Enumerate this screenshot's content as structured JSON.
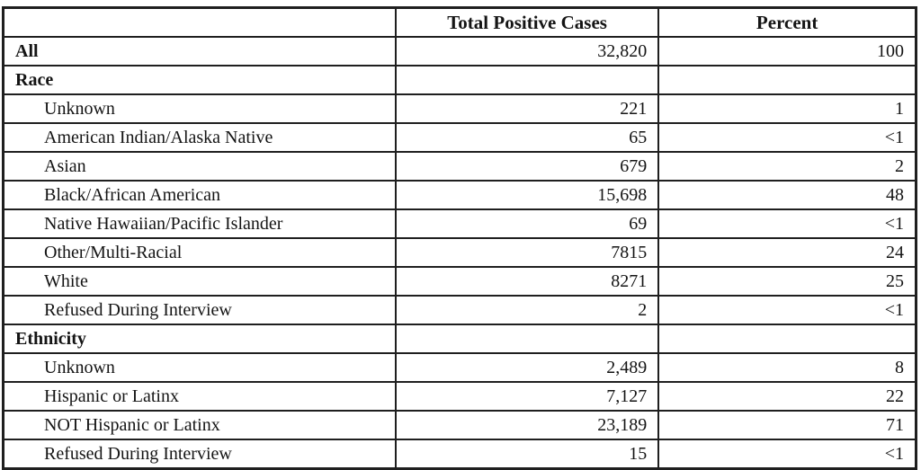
{
  "table": {
    "headers": [
      "",
      "Total Positive Cases",
      "Percent"
    ],
    "rows": [
      {
        "label": "All",
        "style": "section",
        "total": "32,820",
        "percent": "100"
      },
      {
        "label": "Race",
        "style": "section",
        "total": "",
        "percent": ""
      },
      {
        "label": "Unknown",
        "style": "sub",
        "total": "221",
        "percent": "1"
      },
      {
        "label": "American Indian/Alaska Native",
        "style": "sub",
        "total": "65",
        "percent": "<1"
      },
      {
        "label": "Asian",
        "style": "sub",
        "total": "679",
        "percent": "2"
      },
      {
        "label": "Black/African American",
        "style": "sub",
        "total": "15,698",
        "percent": "48"
      },
      {
        "label": "Native Hawaiian/Pacific Islander",
        "style": "sub",
        "total": "69",
        "percent": "<1"
      },
      {
        "label": "Other/Multi-Racial",
        "style": "sub",
        "total": "7815",
        "percent": "24"
      },
      {
        "label": "White",
        "style": "sub",
        "total": "8271",
        "percent": "25"
      },
      {
        "label": "Refused During Interview",
        "style": "sub",
        "total": "2",
        "percent": "<1"
      },
      {
        "label": "Ethnicity",
        "style": "section",
        "total": "",
        "percent": ""
      },
      {
        "label": "Unknown",
        "style": "sub",
        "total": "2,489",
        "percent": "8"
      },
      {
        "label": "Hispanic or Latinx",
        "style": "sub",
        "total": "7,127",
        "percent": "22"
      },
      {
        "label": "NOT Hispanic or Latinx",
        "style": "sub",
        "total": "23,189",
        "percent": "71"
      },
      {
        "label": "Refused During Interview",
        "style": "sub",
        "total": "15",
        "percent": "<1"
      }
    ]
  },
  "colors": {
    "border": "#1f1f1f",
    "text": "#141414",
    "background": "#ffffff"
  }
}
